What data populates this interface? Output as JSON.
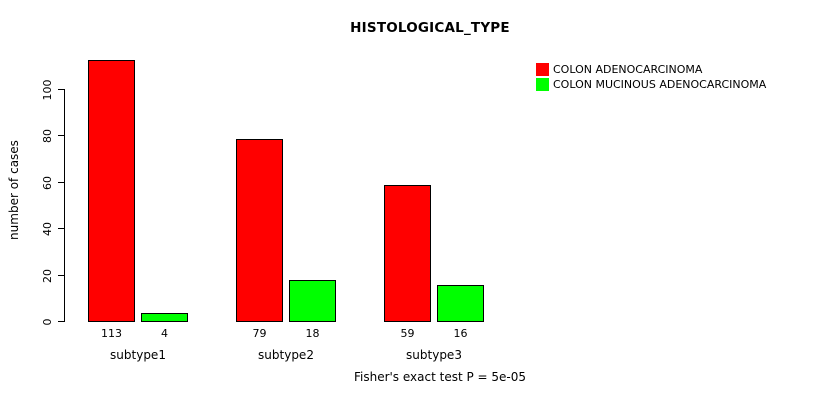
{
  "chart_data": {
    "type": "bar",
    "title": "HISTOLOGICAL_TYPE",
    "ylabel": "number of cases",
    "xlabel": "",
    "categories": [
      "subtype1",
      "subtype2",
      "subtype3"
    ],
    "series": [
      {
        "name": "COLON ADENOCARCINOMA",
        "color": "#ff0000",
        "values": [
          113,
          79,
          59
        ]
      },
      {
        "name": "COLON MUCINOUS ADENOCARCINOMA",
        "color": "#00ff00",
        "values": [
          4,
          18,
          16
        ]
      }
    ],
    "bar_value_labels": [
      [
        113,
        4
      ],
      [
        79,
        18
      ],
      [
        59,
        16
      ]
    ],
    "yticks": [
      0,
      20,
      40,
      60,
      80,
      100
    ],
    "ylim": [
      0,
      115
    ],
    "grid": false,
    "legend_position": "topright",
    "annotation": "Fisher's exact test P = 5e-05"
  }
}
